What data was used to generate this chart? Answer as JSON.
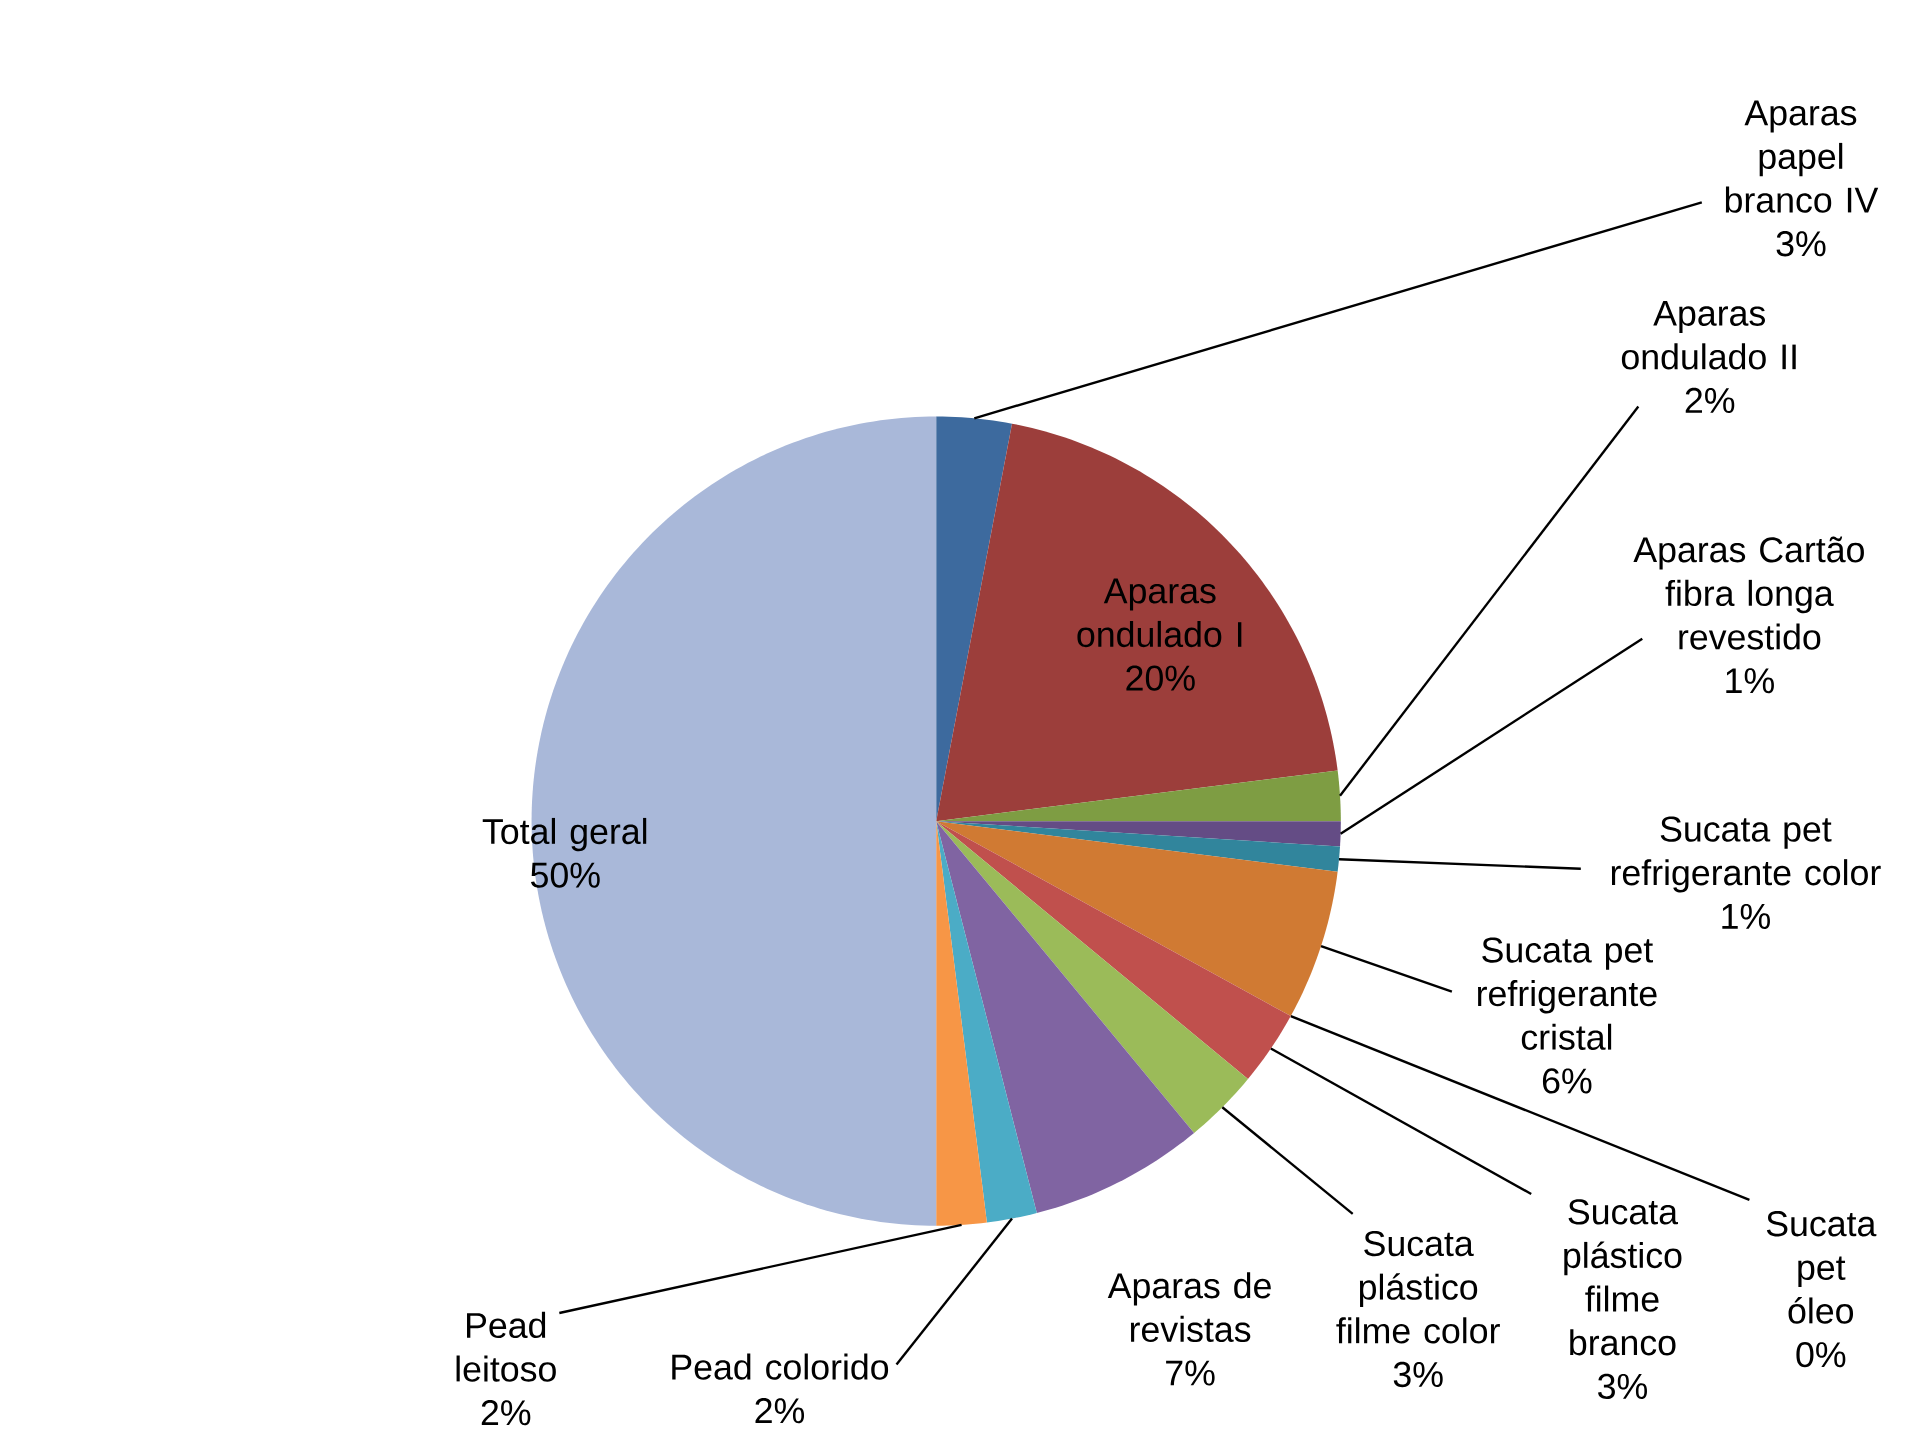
{
  "chart_data": {
    "type": "pie",
    "categories": [
      "Aparas papel branco IV",
      "Aparas ondulado I",
      "Aparas ondulado II",
      "Aparas Cartão fibra longa revestido",
      "Sucata pet refrigerante color",
      "Sucata pet refrigerante cristal",
      "Sucata pet óleo",
      "Sucata plástico filme branco",
      "Sucata plástico filme color",
      "Aparas de revistas",
      "Pead colorido",
      "Pead leitoso",
      "Total geral"
    ],
    "values": [
      3,
      20,
      2,
      1,
      1,
      6,
      0,
      3,
      3,
      7,
      2,
      2,
      50
    ],
    "value_labels": [
      "3%",
      "20%",
      "2%",
      "1%",
      "1%",
      "6%",
      "0%",
      "3%",
      "3%",
      "7%",
      "2%",
      "2%",
      "50%"
    ],
    "colors": [
      "#3d6a9e",
      "#9c3e3b",
      "#7e9d43",
      "#644c85",
      "#31859c",
      "#d07a33",
      "#4f81bd",
      "#c0504d",
      "#9bbb59",
      "#8064a2",
      "#4bacc6",
      "#f79646",
      "#a9b8d9"
    ]
  }
}
